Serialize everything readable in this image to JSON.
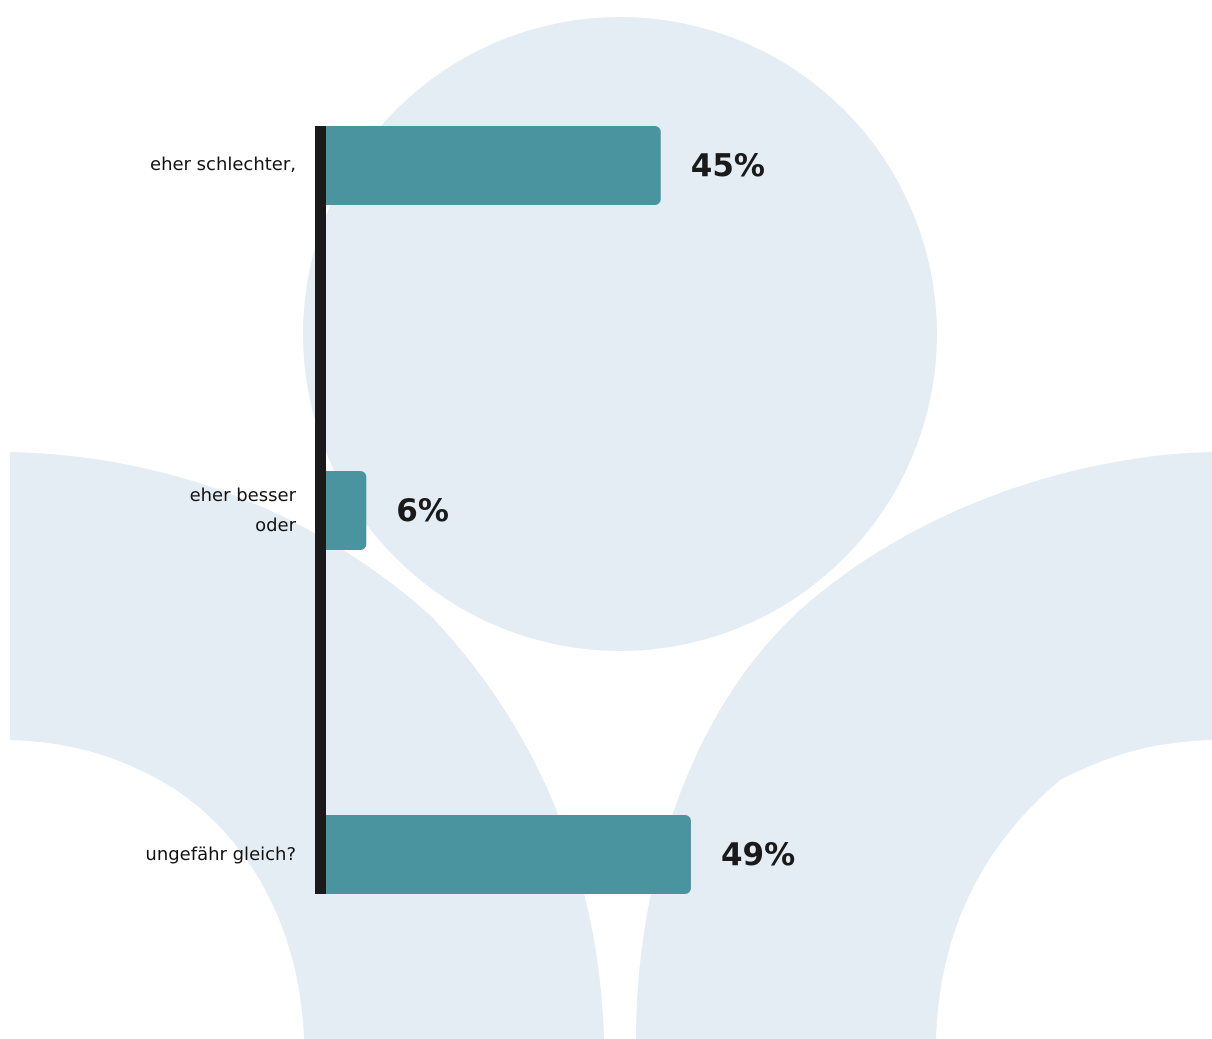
{
  "colors": {
    "background_shape": "#e4ecf4",
    "bar": "#4a94a0",
    "axis": "#1a1a1a",
    "text": "#111111"
  },
  "chart_data": {
    "type": "bar",
    "orientation": "horizontal",
    "categories": [
      "eher schlechter,",
      "eher besser\noder",
      "ungefähr gleich?"
    ],
    "values": [
      45,
      6,
      49
    ],
    "data_labels": [
      "45%",
      "6%",
      "49%"
    ],
    "unit": "%",
    "title": "",
    "xlabel": "",
    "ylabel": "",
    "xlim": [
      0,
      49
    ],
    "grid": false,
    "legend": "none"
  }
}
